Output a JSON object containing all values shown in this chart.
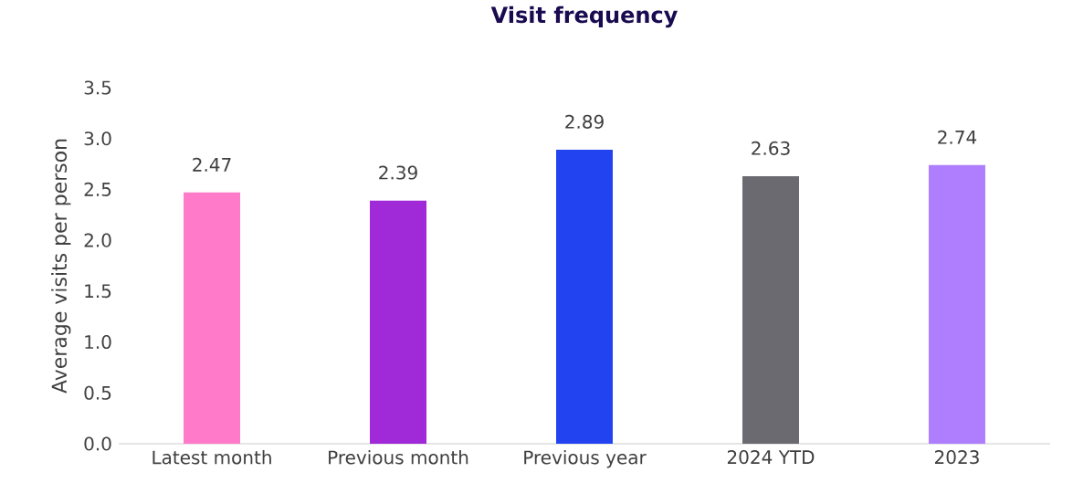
{
  "chart_data": {
    "type": "bar",
    "title": "Visit frequency",
    "ylabel": "Average visits per person",
    "categories": [
      "Latest month",
      "Previous month",
      "Previous year",
      "2024 YTD",
      "2023"
    ],
    "values": [
      2.47,
      2.39,
      2.89,
      2.63,
      2.74
    ],
    "colors": [
      "#ff7ac8",
      "#a02ad8",
      "#2244f0",
      "#6a6a70",
      "#ae7eff"
    ],
    "ylim": [
      0,
      3.5
    ],
    "yticks": [
      {
        "value": 0,
        "label": "0.0"
      },
      {
        "value": 0.5,
        "label": "0.5"
      },
      {
        "value": 1,
        "label": "1.0"
      },
      {
        "value": 1.5,
        "label": "1.5"
      },
      {
        "value": 2,
        "label": "2.0"
      },
      {
        "value": 2.5,
        "label": "2.5"
      },
      {
        "value": 3,
        "label": "3.0"
      },
      {
        "value": 3.5,
        "label": "3.5"
      }
    ],
    "data_labels": true
  }
}
